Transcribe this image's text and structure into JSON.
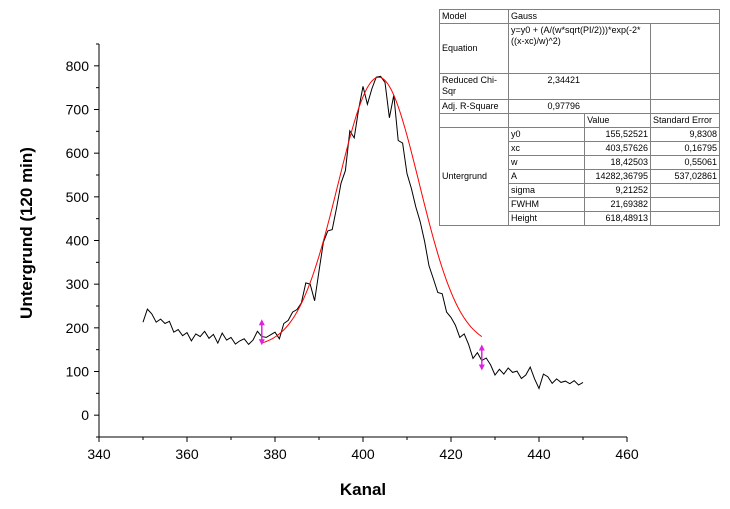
{
  "chart_data": {
    "type": "line",
    "xlabel": "Kanal",
    "ylabel": "Untergrund (120 min)",
    "xlim": [
      340,
      460
    ],
    "ylim": [
      -50,
      850
    ],
    "xticks": [
      "340",
      "360",
      "380",
      "400",
      "420",
      "440",
      "460"
    ],
    "yticks": [
      "0",
      "100",
      "200",
      "300",
      "400",
      "500",
      "600",
      "700",
      "800"
    ],
    "grid": false,
    "series": [
      {
        "style": "black-line",
        "color": "#000000",
        "x": [
          350,
          351,
          352,
          353,
          354,
          355,
          356,
          357,
          358,
          359,
          360,
          361,
          362,
          363,
          364,
          365,
          366,
          367,
          368,
          369,
          370,
          371,
          372,
          373,
          374,
          375,
          376,
          377,
          378,
          379,
          380,
          381,
          382,
          383,
          384,
          385,
          386,
          387,
          388,
          389,
          390,
          391,
          392,
          393,
          394,
          395,
          396,
          397,
          398,
          399,
          400,
          401,
          402,
          403,
          404,
          405,
          406,
          407,
          408,
          409,
          410,
          411,
          412,
          413,
          414,
          415,
          416,
          417,
          418,
          419,
          420,
          421,
          422,
          423,
          424,
          425,
          426,
          427,
          428,
          429,
          430,
          431,
          432,
          433,
          434,
          435,
          436,
          437,
          438,
          439,
          440,
          441,
          442,
          443,
          444,
          445,
          446,
          447,
          448,
          449,
          450
        ],
        "y": [
          213,
          243,
          232,
          213,
          220,
          210,
          215,
          190,
          196,
          182,
          189,
          170,
          186,
          180,
          192,
          176,
          185,
          165,
          188,
          172,
          178,
          163,
          170,
          175,
          162,
          172,
          192,
          180,
          178,
          184,
          190,
          175,
          210,
          217,
          236,
          242,
          257,
          303,
          300,
          262,
          330,
          396,
          422,
          425,
          475,
          531,
          560,
          651,
          635,
          700,
          753,
          712,
          747,
          774,
          776,
          762,
          681,
          733,
          629,
          623,
          553,
          519,
          477,
          443,
          398,
          342,
          312,
          281,
          278,
          236,
          224,
          206,
          178,
          186,
          162,
          130,
          143,
          125,
          131,
          115,
          92,
          105,
          94,
          108,
          98,
          101,
          84,
          92,
          110,
          83,
          61,
          94,
          88,
          73,
          83,
          75,
          78,
          72,
          79,
          69,
          75
        ]
      },
      {
        "style": "fit-curve",
        "color": "#ff0000",
        "model": "Gauss",
        "x_range": [
          377,
          427
        ],
        "y0": 155.52521,
        "xc": 403.57626,
        "w": 18.42503,
        "A": 14282.36795
      }
    ],
    "markers": [
      {
        "x": 377,
        "y": 190,
        "color": "#e020e0",
        "name": "left-range-marker"
      },
      {
        "x": 427,
        "y": 132,
        "color": "#e020e0",
        "name": "right-range-marker"
      }
    ],
    "legend": "none"
  },
  "fit_table": {
    "model_label": "Model",
    "model_value": "Gauss",
    "equation_label": "Equation",
    "equation_value": "y=y0 + (A/(w*sqrt(PI/2)))*exp(-2*((x-xc)/w)^2)",
    "chi_label": "Reduced Chi-Sqr",
    "chi_value": "2,34421",
    "r2_label": "Adj. R-Square",
    "r2_value": "0,97796",
    "col_value": "Value",
    "col_error": "Standard Error",
    "group_label": "Untergrund",
    "params": [
      {
        "name": "y0",
        "value": "155,52521",
        "error": "9,8308"
      },
      {
        "name": "xc",
        "value": "403,57626",
        "error": "0,16795"
      },
      {
        "name": "w",
        "value": "18,42503",
        "error": "0,55061"
      },
      {
        "name": "A",
        "value": "14282,36795",
        "error": "537,02861"
      },
      {
        "name": "sigma",
        "value": "9,21252",
        "error": ""
      },
      {
        "name": "FWHM",
        "value": "21,69382",
        "error": ""
      },
      {
        "name": "Height",
        "value": "618,48913",
        "error": ""
      }
    ]
  }
}
